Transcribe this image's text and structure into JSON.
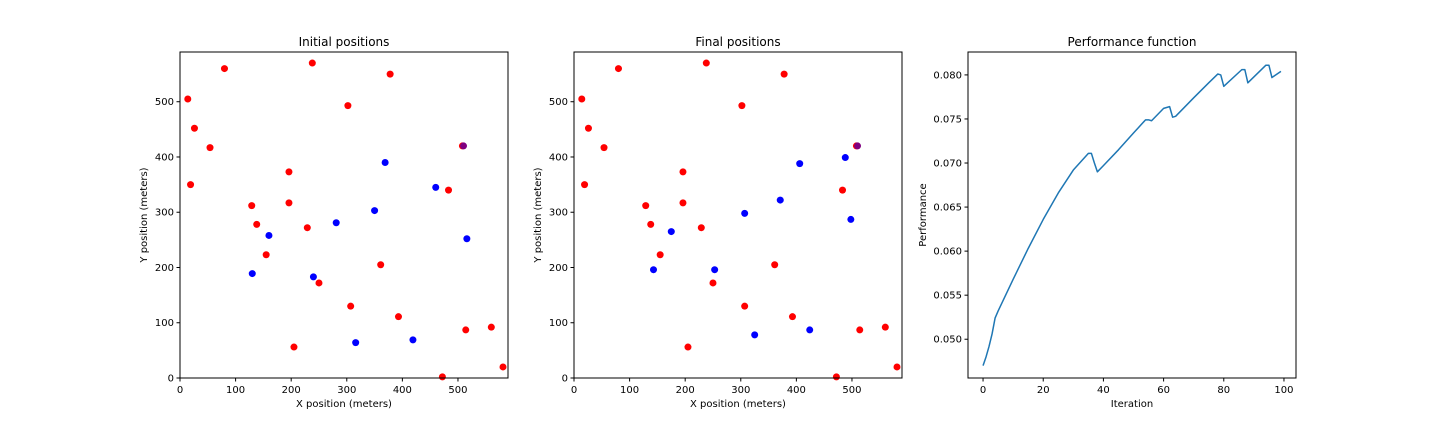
{
  "chart_data": [
    {
      "type": "scatter",
      "title": "Initial positions",
      "xlabel": "X position (meters)",
      "ylabel": "Y position (meters)",
      "xlim": [
        0,
        590
      ],
      "ylim": [
        0,
        590
      ],
      "xticks": [
        0,
        100,
        200,
        300,
        400,
        500
      ],
      "yticks": [
        0,
        100,
        200,
        300,
        400,
        500
      ],
      "grid": false,
      "series": [
        {
          "color": "#ff0000",
          "points": [
            [
              80,
              560
            ],
            [
              238,
              570
            ],
            [
              378,
              550
            ],
            [
              14,
              505
            ],
            [
              302,
              493
            ],
            [
              26,
              452
            ],
            [
              54,
              417
            ],
            [
              508,
              420
            ],
            [
              196,
              373
            ],
            [
              19,
              350
            ],
            [
              483,
              340
            ],
            [
              129,
              312
            ],
            [
              196,
              317
            ],
            [
              138,
              278
            ],
            [
              229,
              272
            ],
            [
              155,
              223
            ],
            [
              361,
              205
            ],
            [
              250,
              172
            ],
            [
              307,
              130
            ],
            [
              393,
              111
            ],
            [
              514,
              87
            ],
            [
              560,
              92
            ],
            [
              205,
              56
            ],
            [
              472,
              2
            ],
            [
              581,
              20
            ]
          ]
        },
        {
          "color": "#0000ff",
          "points": [
            [
              369,
              390
            ],
            [
              460,
              345
            ],
            [
              350,
              303
            ],
            [
              281,
              281
            ],
            [
              516,
              252
            ],
            [
              160,
              258
            ],
            [
              130,
              189
            ],
            [
              240,
              183
            ],
            [
              316,
              64
            ],
            [
              419,
              69
            ]
          ]
        },
        {
          "color": "#800080",
          "points": [
            [
              510,
              420
            ]
          ]
        }
      ]
    },
    {
      "type": "scatter",
      "title": "Final positions",
      "xlabel": "X position (meters)",
      "ylabel": "Y position (meters)",
      "xlim": [
        0,
        590
      ],
      "ylim": [
        0,
        590
      ],
      "xticks": [
        0,
        100,
        200,
        300,
        400,
        500
      ],
      "yticks": [
        0,
        100,
        200,
        300,
        400,
        500
      ],
      "grid": false,
      "series": [
        {
          "color": "#ff0000",
          "points": [
            [
              80,
              560
            ],
            [
              238,
              570
            ],
            [
              378,
              550
            ],
            [
              14,
              505
            ],
            [
              302,
              493
            ],
            [
              26,
              452
            ],
            [
              54,
              417
            ],
            [
              508,
              420
            ],
            [
              196,
              373
            ],
            [
              19,
              350
            ],
            [
              483,
              340
            ],
            [
              129,
              312
            ],
            [
              196,
              317
            ],
            [
              138,
              278
            ],
            [
              229,
              272
            ],
            [
              155,
              223
            ],
            [
              361,
              205
            ],
            [
              250,
              172
            ],
            [
              307,
              130
            ],
            [
              393,
              111
            ],
            [
              514,
              87
            ],
            [
              560,
              92
            ],
            [
              205,
              56
            ],
            [
              472,
              2
            ],
            [
              581,
              20
            ]
          ]
        },
        {
          "color": "#0000ff",
          "points": [
            [
              406,
              388
            ],
            [
              488,
              399
            ],
            [
              371,
              322
            ],
            [
              307,
              298
            ],
            [
              498,
              287
            ],
            [
              175,
              265
            ],
            [
              143,
              196
            ],
            [
              253,
              196
            ],
            [
              325,
              78
            ],
            [
              424,
              87
            ]
          ]
        },
        {
          "color": "#800080",
          "points": [
            [
              510,
              420
            ]
          ]
        }
      ]
    },
    {
      "type": "line",
      "title": "Performance function",
      "xlabel": "Iteration",
      "ylabel": "Performance",
      "xlim": [
        -5,
        104
      ],
      "ylim": [
        0.0456,
        0.0826
      ],
      "xticks": [
        0,
        20,
        40,
        60,
        80,
        100
      ],
      "yticks": [
        0.05,
        0.055,
        0.06,
        0.065,
        0.07,
        0.075,
        0.08
      ],
      "ytick_labels": [
        "0.050",
        "0.055",
        "0.060",
        "0.065",
        "0.070",
        "0.075",
        "0.080"
      ],
      "grid": false,
      "series": [
        {
          "color": "#1f77b4",
          "x": [
            0,
            1,
            2,
            3,
            4,
            5,
            10,
            15,
            20,
            25,
            30,
            35,
            36,
            37,
            38,
            40,
            45,
            50,
            54,
            55,
            56,
            60,
            62,
            63,
            64,
            70,
            75,
            78,
            79,
            80,
            86,
            87,
            88,
            94,
            95,
            96,
            99
          ],
          "y": [
            0.047,
            0.048,
            0.0492,
            0.0506,
            0.0524,
            0.0532,
            0.0568,
            0.0603,
            0.0636,
            0.0666,
            0.0692,
            0.0711,
            0.0711,
            0.07,
            0.069,
            0.0697,
            0.0715,
            0.0734,
            0.0749,
            0.0749,
            0.0748,
            0.0762,
            0.0764,
            0.0752,
            0.0753,
            0.0774,
            0.0791,
            0.0801,
            0.08,
            0.0787,
            0.0806,
            0.0806,
            0.0791,
            0.0811,
            0.0811,
            0.0797,
            0.0804
          ]
        }
      ]
    }
  ]
}
